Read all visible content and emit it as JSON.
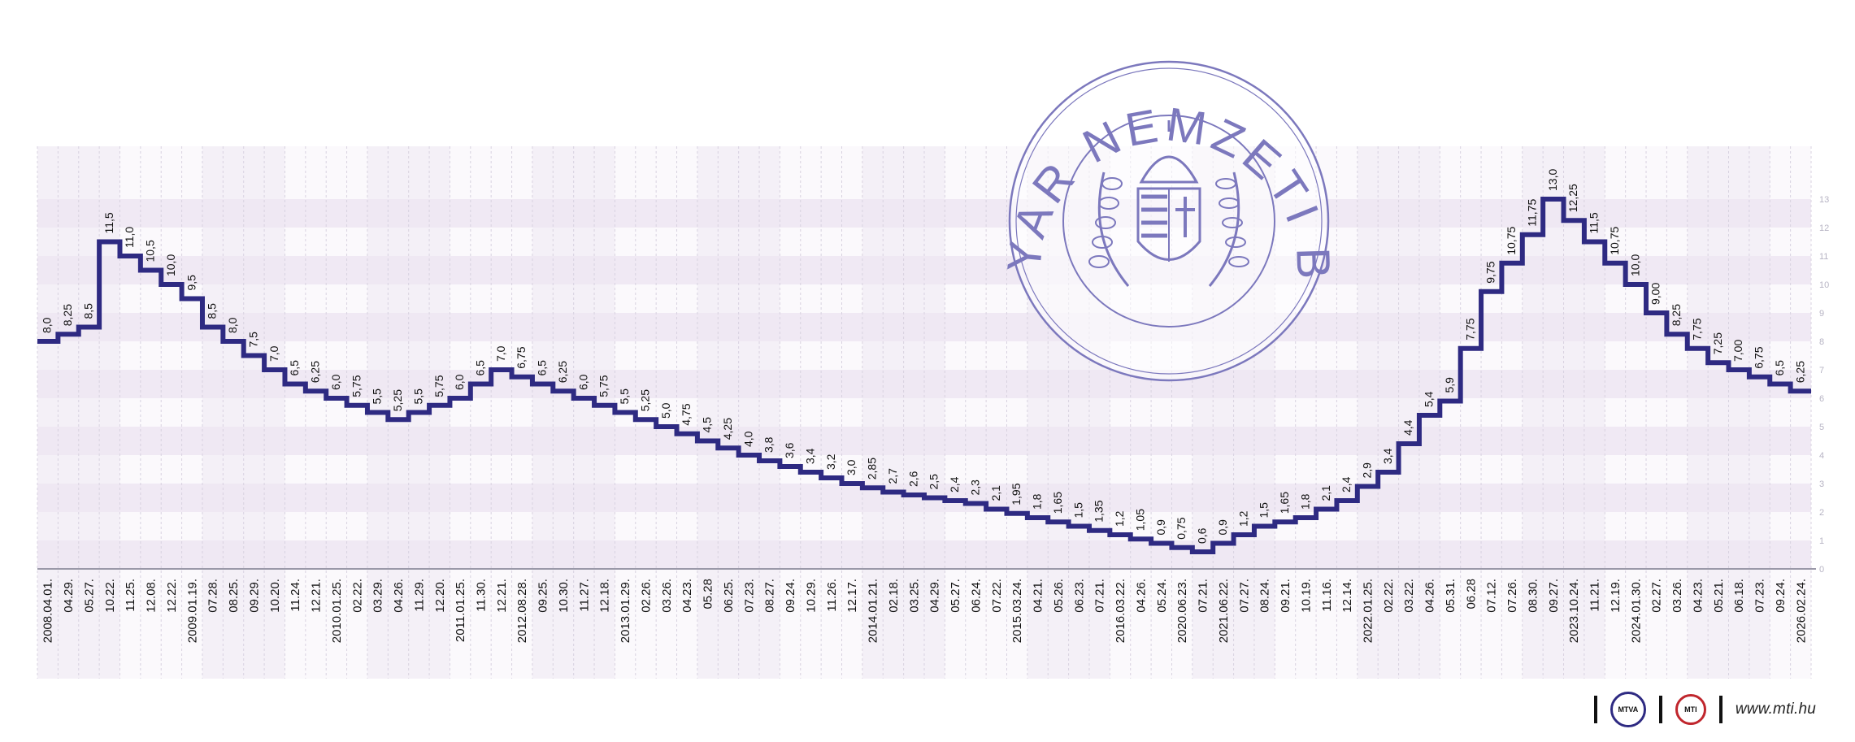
{
  "chart_data": {
    "type": "line",
    "step": true,
    "ylim": [
      0,
      13
    ],
    "yticks": [
      0,
      1,
      2,
      3,
      4,
      5,
      6,
      7,
      8,
      9,
      10,
      11,
      12,
      13
    ],
    "grid": true,
    "series_color": "#2e2a82",
    "x": [
      "2008.04.01.",
      "04.29.",
      "05.27.",
      "10.22.",
      "11.25.",
      "12.08.",
      "12.22.",
      "2009.01.19.",
      "07.28.",
      "08.25.",
      "09.29.",
      "10.20.",
      "11.24.",
      "12.21.",
      "2010.01.25.",
      "02.22.",
      "03.29.",
      "04.26.",
      "11.29.",
      "12.20.",
      "2011.01.25.",
      "11.30.",
      "12.21.",
      "2012.08.28.",
      "09.25.",
      "10.30.",
      "11.27.",
      "12.18.",
      "2013.01.29.",
      "02.26.",
      "03.26.",
      "04.23.",
      "05.28",
      "06.25.",
      "07.23.",
      "08.27.",
      "09.24.",
      "10.29.",
      "11.26.",
      "12.17.",
      "2014.01.21.",
      "02.18.",
      "03.25.",
      "04.29.",
      "05.27.",
      "06.24.",
      "07.22.",
      "2015.03.24.",
      "04.21.",
      "05.26.",
      "06.23.",
      "07.21.",
      "2016.03.22.",
      "04.26.",
      "05.24.",
      "2020.06.23.",
      "07.21.",
      "2021.06.22.",
      "07.27.",
      "08.24.",
      "09.21.",
      "10.19.",
      "11.16.",
      "12.14.",
      "2022.01.25.",
      "02.22.",
      "03.22.",
      "04.26.",
      "05.31.",
      "06.28",
      "07.12.",
      "07.26.",
      "08.30.",
      "09.27.",
      "2023.10.24.",
      "11.21.",
      "12.19.",
      "2024.01.30.",
      "02.27.",
      "03.26.",
      "04.23.",
      "05.21.",
      "06.18.",
      "07.23.",
      "09.24.",
      "2026.02.24."
    ],
    "labels": [
      "8,0",
      "8,25",
      "8,5",
      "11,5",
      "11,0",
      "10,5",
      "10,0",
      "9,5",
      "8,5",
      "8,0",
      "7,5",
      "7,0",
      "6,5",
      "6,25",
      "6,0",
      "5,75",
      "5,5",
      "5,25",
      "5,5",
      "5,75",
      "6,0",
      "6,5",
      "7,0",
      "6,75",
      "6,5",
      "6,25",
      "6,0",
      "5,75",
      "5,5",
      "5,25",
      "5,0",
      "4,75",
      "4,5",
      "4,25",
      "4,0",
      "3,8",
      "3,6",
      "3,4",
      "3,2",
      "3,0",
      "2,85",
      "2,7",
      "2,6",
      "2,5",
      "2,4",
      "2,3",
      "2,1",
      "1,95",
      "1,8",
      "1,65",
      "1,5",
      "1,35",
      "1,2",
      "1,05",
      "0,9",
      "0,75",
      "0,6",
      "0,9",
      "1,2",
      "1,5",
      "1,65",
      "1,8",
      "2,1",
      "2,4",
      "2,9",
      "3,4",
      "4,4",
      "5,4",
      "5,9",
      "7,75",
      "9,75",
      "10,75",
      "11,75",
      "13,0",
      "12,25",
      "11,5",
      "10,75",
      "10,0",
      "9,00",
      "8,25",
      "7,75",
      "7,25",
      "7,00",
      "6,75",
      "6,5",
      "6,25"
    ],
    "values": [
      8.0,
      8.25,
      8.5,
      11.5,
      11.0,
      10.5,
      10.0,
      9.5,
      8.5,
      8.0,
      7.5,
      7.0,
      6.5,
      6.25,
      6.0,
      5.75,
      5.5,
      5.25,
      5.5,
      5.75,
      6.0,
      6.5,
      7.0,
      6.75,
      6.5,
      6.25,
      6.0,
      5.75,
      5.5,
      5.25,
      5.0,
      4.75,
      4.5,
      4.25,
      4.0,
      3.8,
      3.6,
      3.4,
      3.2,
      3.0,
      2.85,
      2.7,
      2.6,
      2.5,
      2.4,
      2.3,
      2.1,
      1.95,
      1.8,
      1.65,
      1.5,
      1.35,
      1.2,
      1.05,
      0.9,
      0.75,
      0.6,
      0.9,
      1.2,
      1.5,
      1.65,
      1.8,
      2.1,
      2.4,
      2.9,
      3.4,
      4.4,
      5.4,
      5.9,
      7.75,
      9.75,
      10.75,
      11.75,
      13.0,
      12.25,
      11.5,
      10.75,
      10.0,
      9.0,
      8.25,
      7.75,
      7.25,
      7.0,
      6.75,
      6.5,
      6.25
    ]
  },
  "seal": {
    "text": "MAGYAR NEMZETI BANK",
    "color": "#7c78bd"
  },
  "footer": {
    "badge_mtva": "MTVA",
    "badge_mti": "MTI",
    "url": "www.mti.hu"
  }
}
